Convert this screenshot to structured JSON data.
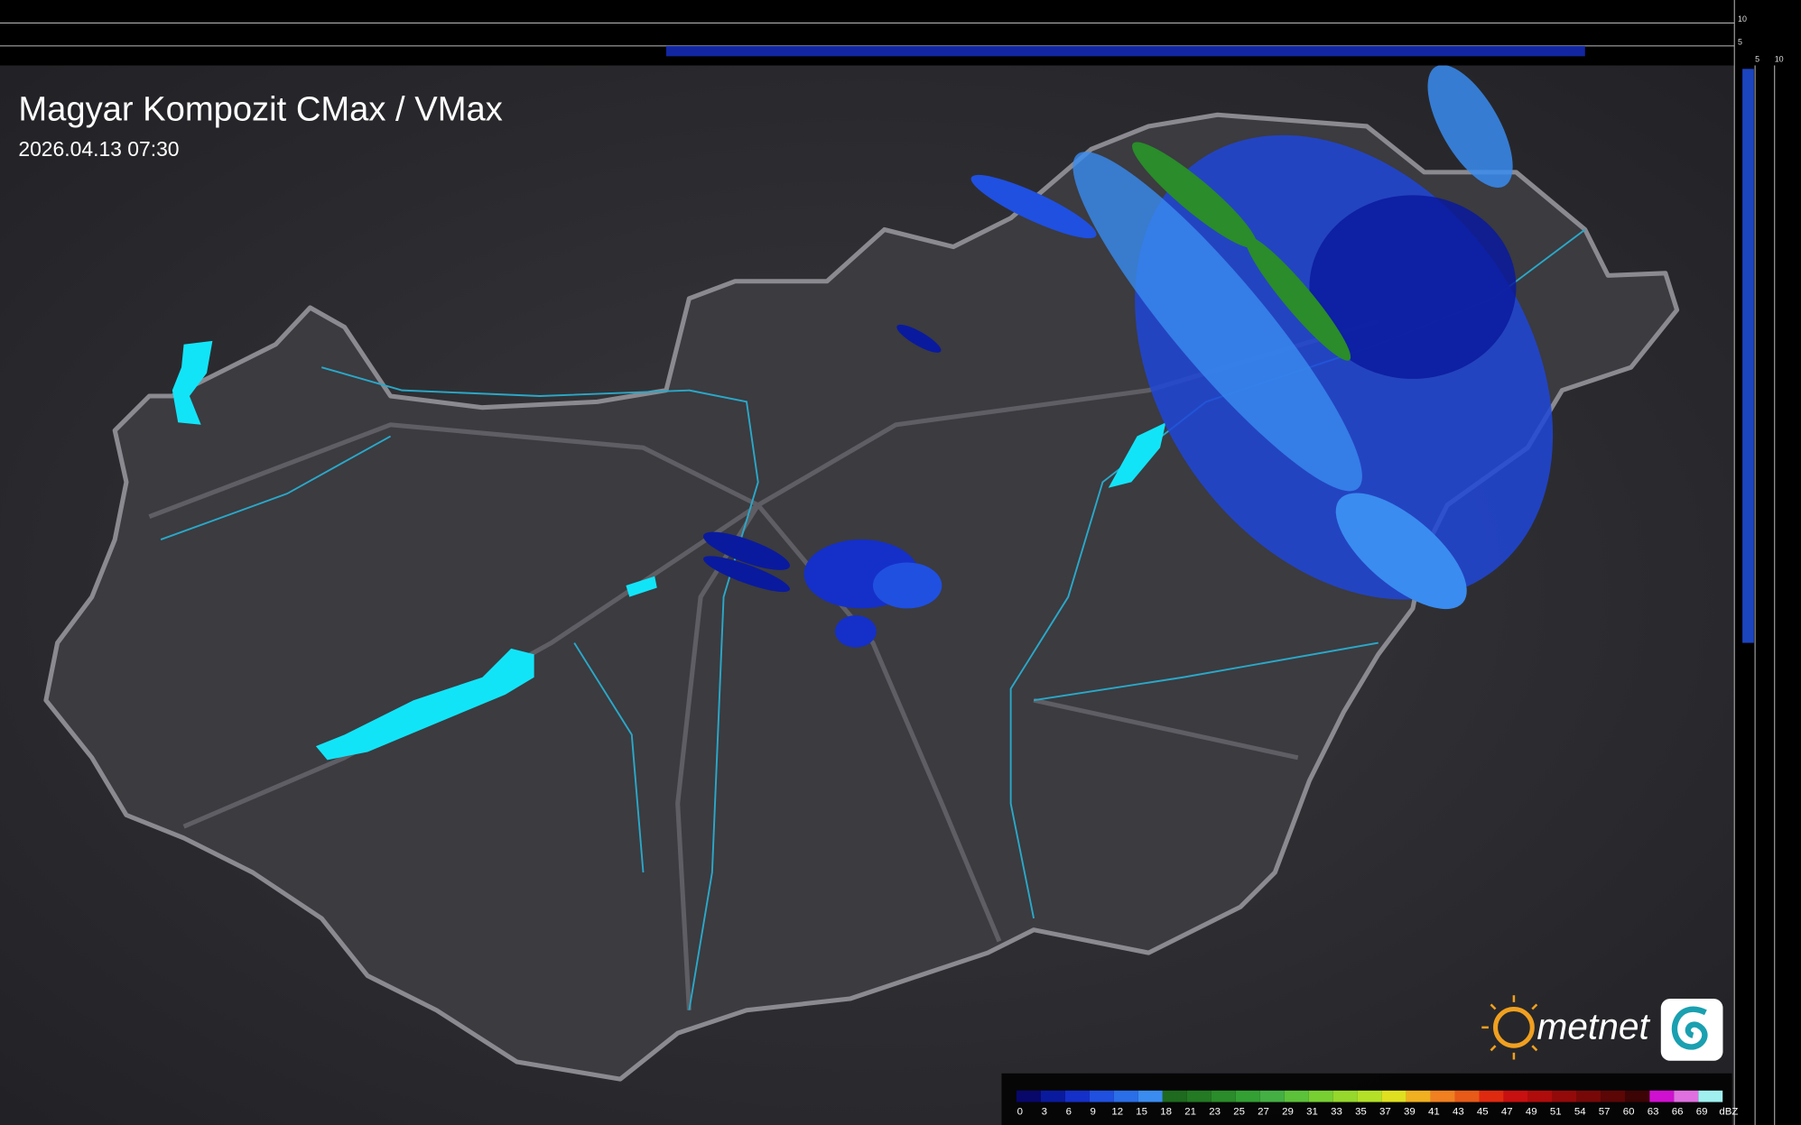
{
  "header": {
    "title": "Magyar Kompozit CMax / VMax",
    "timestamp": "2026.04.13 07:30"
  },
  "profile_ticks": {
    "top": [
      "10",
      "5"
    ],
    "side": [
      "5",
      "10"
    ]
  },
  "logo": {
    "text": "metnet"
  },
  "legend": {
    "unit": "dBZ",
    "items": [
      {
        "label": "0",
        "color": "#08086b"
      },
      {
        "label": "3",
        "color": "#0a1a9e"
      },
      {
        "label": "6",
        "color": "#1530c8"
      },
      {
        "label": "9",
        "color": "#2050e0"
      },
      {
        "label": "12",
        "color": "#2a6ee8"
      },
      {
        "label": "15",
        "color": "#3a8cf0"
      },
      {
        "label": "18",
        "color": "#1e6a1e"
      },
      {
        "label": "21",
        "color": "#237a23"
      },
      {
        "label": "23",
        "color": "#2a8c2a"
      },
      {
        "label": "25",
        "color": "#33a033"
      },
      {
        "label": "27",
        "color": "#44b044"
      },
      {
        "label": "29",
        "color": "#5cc23a"
      },
      {
        "label": "31",
        "color": "#78cf32"
      },
      {
        "label": "33",
        "color": "#96d82c"
      },
      {
        "label": "35",
        "color": "#b4e028"
      },
      {
        "label": "37",
        "color": "#e0e020"
      },
      {
        "label": "39",
        "color": "#f0b020"
      },
      {
        "label": "41",
        "color": "#f08020"
      },
      {
        "label": "43",
        "color": "#e85a18"
      },
      {
        "label": "45",
        "color": "#e02a10"
      },
      {
        "label": "47",
        "color": "#c81010"
      },
      {
        "label": "49",
        "color": "#b00c0c"
      },
      {
        "label": "51",
        "color": "#940a0a"
      },
      {
        "label": "54",
        "color": "#780808"
      },
      {
        "label": "57",
        "color": "#5c0606"
      },
      {
        "label": "60",
        "color": "#3c0404"
      },
      {
        "label": "63",
        "color": "#d010d0"
      },
      {
        "label": "66",
        "color": "#e070e0"
      },
      {
        "label": "69",
        "color": "#a0f0f0"
      }
    ]
  }
}
